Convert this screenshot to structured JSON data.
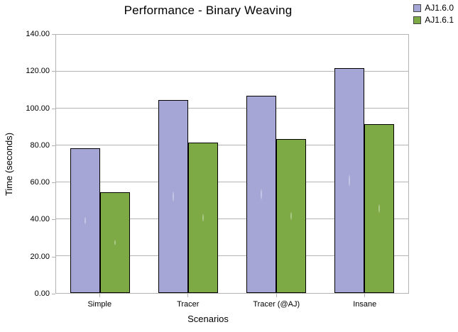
{
  "title": "Performance - Binary Weaving",
  "legend": {
    "items": [
      {
        "label": "AJ1.6.0",
        "color": "#a5a6d6"
      },
      {
        "label": "AJ1.6.1",
        "color": "#7daa45"
      }
    ]
  },
  "chart_data": {
    "type": "bar",
    "title": "Performance - Binary Weaving",
    "categories": [
      "Simple",
      "Tracer",
      "Tracer (@AJ)",
      "Insane"
    ],
    "series": [
      {
        "name": "AJ1.6.0",
        "color": "#a5a6d6",
        "values": [
          78.5,
          104.5,
          107,
          122
        ]
      },
      {
        "name": "AJ1.6.1",
        "color": "#7daa45",
        "values": [
          54.5,
          81.5,
          83.5,
          91.5
        ]
      }
    ],
    "xlabel": "Scenarios",
    "ylabel": "Time (seconds)",
    "ylim": [
      0,
      140
    ],
    "yticks": [
      "0.00",
      "20.00",
      "40.00",
      "60.00",
      "80.00",
      "100.00",
      "120.00",
      "140.00"
    ],
    "grid": "horizontal",
    "legend_position": "top-right"
  },
  "colors": {
    "background": "#ffffff",
    "grid": "#b3b3b3",
    "axis": "#b3b3b3",
    "bar_border": "#000000",
    "text": "#000000"
  }
}
